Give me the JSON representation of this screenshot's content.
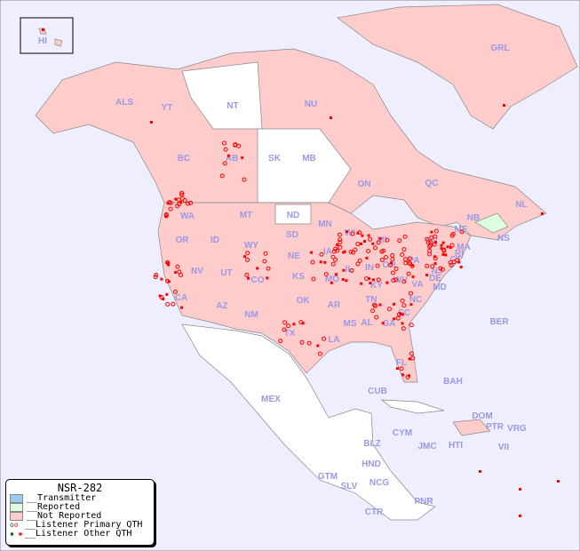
{
  "legend": {
    "title": "NSR-282",
    "items": [
      {
        "label": "__Transmitter",
        "color": "#99ccee"
      },
      {
        "label": "__Reported",
        "color": "#ddffdd"
      },
      {
        "label": "__Not Reported",
        "color": "#ffcccc"
      },
      {
        "label": "__Listener Primary QTH",
        "icon": "circle-marker"
      },
      {
        "label": "__Listener Other QTH",
        "icon": "square-marker"
      }
    ]
  },
  "colors": {
    "ocean": "#eeeeff",
    "not_reported": "#ffcccc",
    "reported": "#ddffdd",
    "no_data": "#ffffff",
    "label": "#9999e6",
    "marker": "#ff0000"
  },
  "regions": [
    "HI",
    "ALS",
    "YT",
    "NT",
    "NU",
    "GRL",
    "BC",
    "AB",
    "SK",
    "MB",
    "ON",
    "QC",
    "NL",
    "NB",
    "NS",
    "WA",
    "OR",
    "ID",
    "MT",
    "ND",
    "SD",
    "WY",
    "NE",
    "MN",
    "WI",
    "MI",
    "IA",
    "IL",
    "IN",
    "OH",
    "PA",
    "NY",
    "ME",
    "MA",
    "CT",
    "RI",
    "NJ",
    "DE",
    "MD",
    "NV",
    "UT",
    "CO",
    "KS",
    "MO",
    "KY",
    "WV",
    "VA",
    "CA",
    "AZ",
    "NM",
    "OK",
    "AR",
    "TN",
    "NC",
    "SC",
    "GA",
    "AL",
    "MS",
    "LA",
    "TX",
    "FL",
    "MEX",
    "CUB",
    "BAH",
    "BER",
    "DOM",
    "PTR",
    "VRG",
    "CYM",
    "JMC",
    "HTI",
    "VII",
    "BLZ",
    "HND",
    "GTM",
    "SLV",
    "NCG",
    "CTR",
    "PNR"
  ]
}
